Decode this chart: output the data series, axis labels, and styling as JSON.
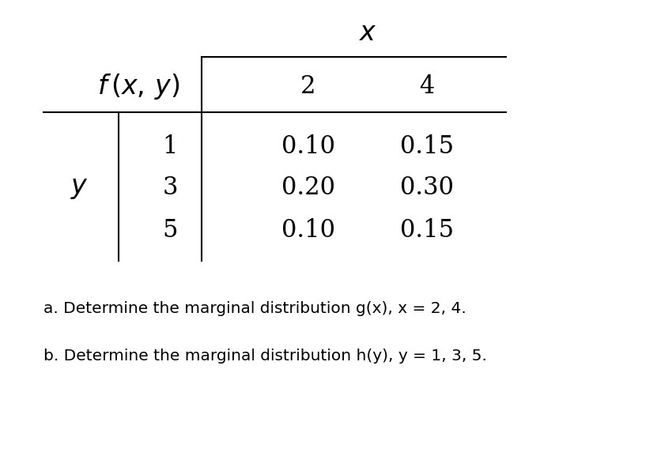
{
  "bg_color": "#ffffff",
  "title_text": "a. Determine the marginal distribution g(x), x = 2, 4.",
  "subtitle_text": "b. Determine the marginal distribution h(y), y = 1, 3, 5.",
  "col_headers": [
    "2",
    "4"
  ],
  "row_headers": [
    "1",
    "3",
    "5"
  ],
  "table_data": [
    [
      "0.10",
      "0.15"
    ],
    [
      "0.20",
      "0.30"
    ],
    [
      "0.10",
      "0.15"
    ]
  ],
  "figsize": [
    8.31,
    5.77
  ],
  "dpi": 100,
  "fs_serif": 22,
  "fs_serif_italic": 24,
  "fs_text": 14.5,
  "line_width": 1.5
}
